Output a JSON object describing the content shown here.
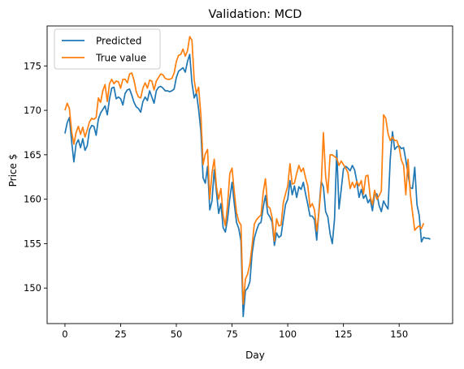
{
  "chart_data": {
    "type": "line",
    "title": "Validation: MCD",
    "xlabel": "Day",
    "ylabel": "Price $",
    "xlim": [
      -8,
      174
    ],
    "ylim": [
      146,
      179.5
    ],
    "xticks": [
      0,
      25,
      50,
      75,
      100,
      125,
      150
    ],
    "yticks": [
      150,
      155,
      160,
      165,
      170,
      175
    ],
    "grid": false,
    "legend_position": "upper-left",
    "series": [
      {
        "name": "Predicted",
        "color": "#1f77b4",
        "values": [
          167.4,
          168.6,
          169.2,
          166.5,
          164.2,
          166.2,
          166.7,
          165.8,
          166.8,
          165.5,
          166.0,
          167.8,
          168.3,
          168.2,
          167.2,
          169.0,
          169.7,
          170.1,
          170.5,
          169.5,
          171.3,
          172.5,
          172.6,
          171.3,
          171.5,
          171.3,
          170.6,
          171.9,
          172.3,
          172.4,
          171.7,
          170.9,
          170.4,
          170.2,
          169.8,
          171.0,
          171.5,
          171.1,
          172.2,
          171.5,
          170.8,
          172.2,
          172.6,
          172.7,
          172.5,
          172.2,
          172.2,
          172.1,
          172.2,
          172.4,
          173.7,
          174.4,
          174.6,
          174.8,
          174.3,
          175.5,
          176.3,
          173.1,
          171.4,
          172.0,
          170.1,
          167.7,
          162.4,
          161.8,
          163.7,
          158.8,
          159.8,
          163.3,
          160.8,
          158.4,
          159.5,
          156.8,
          156.3,
          157.8,
          160.1,
          161.9,
          159.5,
          157.4,
          156.7,
          155.3,
          146.8,
          149.7,
          150.0,
          150.7,
          153.9,
          155.6,
          156.5,
          157.2,
          157.4,
          159.1,
          160.4,
          158.4,
          158.0,
          157.4,
          154.8,
          156.2,
          155.7,
          155.9,
          157.7,
          159.4,
          160.0,
          162.1,
          160.5,
          161.5,
          160.2,
          161.4,
          161.1,
          161.9,
          160.6,
          159.4,
          158.1,
          158.1,
          157.7,
          155.4,
          158.8,
          162.0,
          161.4,
          158.6,
          158.0,
          156.1,
          155.0,
          157.8,
          165.5,
          158.9,
          161.1,
          163.4,
          163.7,
          163.5,
          163.2,
          163.8,
          163.3,
          162.0,
          160.2,
          161.1,
          160.1,
          160.5,
          159.6,
          160.0,
          158.7,
          160.6,
          160.6,
          159.3,
          158.6,
          159.8,
          159.3,
          158.9,
          164.5,
          167.6,
          165.6,
          165.9,
          166.0,
          165.7,
          165.8,
          164.4,
          162.8,
          161.3,
          161.2,
          163.6,
          159.4,
          158.2,
          155.2,
          155.7,
          155.6,
          155.6,
          155.5
        ],
        "smooth": false
      },
      {
        "name": "True value",
        "color": "#ff7f0e",
        "values": [
          170.0,
          170.8,
          170.2,
          167.6,
          166.2,
          167.5,
          168.2,
          167.3,
          168.1,
          167.0,
          167.8,
          168.7,
          169.1,
          169.0,
          169.2,
          171.4,
          170.9,
          172.2,
          172.9,
          171.0,
          173.0,
          173.5,
          173.0,
          173.3,
          173.2,
          172.5,
          173.5,
          173.5,
          173.1,
          174.1,
          174.2,
          173.4,
          172.1,
          171.5,
          171.4,
          172.5,
          173.1,
          172.5,
          173.4,
          173.3,
          172.3,
          173.3,
          173.7,
          174.1,
          174.0,
          173.6,
          173.5,
          173.5,
          173.6,
          174.2,
          175.5,
          176.2,
          176.3,
          176.9,
          176.1,
          176.7,
          178.3,
          177.9,
          173.4,
          171.9,
          172.6,
          169.5,
          163.9,
          165.1,
          165.6,
          160.0,
          163.0,
          164.5,
          161.4,
          160.0,
          161.2,
          158.2,
          157.0,
          159.4,
          162.9,
          163.5,
          160.8,
          158.5,
          157.5,
          157.1,
          148.2,
          151.0,
          151.6,
          152.7,
          154.8,
          157.2,
          157.7,
          158.0,
          158.2,
          160.8,
          162.3,
          159.2,
          159.0,
          157.9,
          155.3,
          157.8,
          157.0,
          157.1,
          159.6,
          160.6,
          161.5,
          164.0,
          161.7,
          161.8,
          162.9,
          163.8,
          163.1,
          163.5,
          162.4,
          161.5,
          159.1,
          159.5,
          158.8,
          156.4,
          158.5,
          161.5,
          167.5,
          162.6,
          160.7,
          165.0,
          165.0,
          164.8,
          164.6,
          163.8,
          164.3,
          163.9,
          163.5,
          163.0,
          161.2,
          161.9,
          161.3,
          162.0,
          161.5,
          162.1,
          160.6,
          162.6,
          162.7,
          160.3,
          159.4,
          161.0,
          160.0,
          160.4,
          160.9,
          169.5,
          169.1,
          167.4,
          166.6,
          167.0,
          166.6,
          166.6,
          165.8,
          164.4,
          163.8,
          160.5,
          164.5,
          160.6,
          158.5,
          156.5,
          156.8,
          157.0,
          156.7,
          157.3
        ],
        "smooth": false
      }
    ]
  }
}
